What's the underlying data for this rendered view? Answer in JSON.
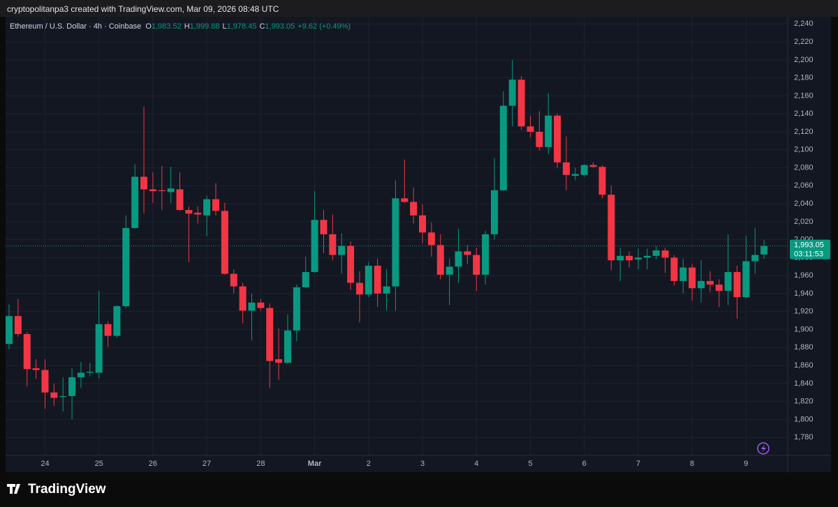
{
  "header": {
    "credit": "cryptopolitanpa3 created with TradingView.com, Mar 09, 2026 08:48 UTC"
  },
  "footer": {
    "brand": "TradingView"
  },
  "chart_data": {
    "type": "candlestick",
    "symbol": "Ethereum / U.S. Dollar · 4h · Coinbase",
    "ohlc_legend": [
      {
        "key": "O",
        "label": "1,983.52"
      },
      {
        "key": "H",
        "label": "1,999.88"
      },
      {
        "key": "L",
        "label": "1,978.45"
      },
      {
        "key": "C",
        "label": "1,993.05"
      }
    ],
    "change_label": "+9.62 (+0.49%)",
    "price_tag": {
      "value": 1993.05,
      "label": "1,993.05",
      "countdown": "03:11:53"
    },
    "up_color": "#089981",
    "down_color": "#f23645",
    "categories": [
      null,
      null,
      null,
      null,
      "24",
      null,
      null,
      null,
      null,
      null,
      "25",
      null,
      null,
      null,
      null,
      null,
      "26",
      null,
      null,
      null,
      null,
      null,
      "27",
      null,
      null,
      null,
      null,
      null,
      "28",
      null,
      null,
      null,
      null,
      null,
      "Mar",
      null,
      null,
      null,
      null,
      null,
      "2",
      null,
      null,
      null,
      null,
      null,
      "3",
      null,
      null,
      null,
      null,
      null,
      "4",
      null,
      null,
      null,
      null,
      null,
      "5",
      null,
      null,
      null,
      null,
      null,
      "6",
      null,
      null,
      null,
      null,
      null,
      "7",
      null,
      null,
      null,
      null,
      null,
      "8",
      null,
      null,
      null,
      null,
      null,
      "9",
      null,
      null
    ],
    "open": [
      1884,
      1915,
      1895,
      1857,
      1855,
      1830,
      1825,
      1826,
      1847,
      1852,
      1852,
      1906,
      1893,
      1926,
      2013,
      2070,
      2056,
      2055,
      2053,
      2056,
      2033,
      2030,
      2027,
      2045,
      2032,
      1962,
      1948,
      1921,
      1930,
      1924,
      1867,
      1863,
      1899,
      1947,
      1964,
      2022,
      2006,
      1983,
      1993,
      1952,
      1939,
      1971,
      1940,
      1948,
      2046,
      2042,
      2027,
      2008,
      1994,
      1961,
      1970,
      1987,
      1983,
      1961,
      2006,
      2055,
      2149,
      2178,
      2126,
      2120,
      2103,
      2138,
      2086,
      2071,
      2072,
      2083,
      2081,
      2050,
      1977,
      1982,
      1978,
      1980,
      1982,
      1988,
      1980,
      1954,
      1969,
      1946,
      1954,
      1950,
      1943,
      1964,
      1936,
      1976,
      1983.52
    ],
    "high": [
      1928,
      1934,
      1897,
      1867,
      1867,
      1840,
      1847,
      1857,
      1864,
      1863,
      1943,
      1909,
      1927,
      2027,
      2084,
      2148,
      2075,
      2082,
      2081,
      2075,
      2037,
      2037,
      2049,
      2063,
      2041,
      1967,
      1952,
      1940,
      1934,
      1929,
      1901,
      1917,
      1950,
      1981,
      2054,
      2033,
      2028,
      2007,
      1998,
      1965,
      1975,
      1979,
      1967,
      2066,
      2089,
      2058,
      2039,
      2019,
      2006,
      1979,
      2012,
      1994,
      1991,
      2010,
      2091,
      2165,
      2200,
      2182,
      2138,
      2143,
      2163,
      2140,
      2115,
      2080,
      2084,
      2086,
      2083,
      2060,
      1991,
      1987,
      1990,
      1990,
      1993,
      1991,
      1983,
      1979,
      1973,
      1977,
      1965,
      1956,
      2006,
      1971,
      2004,
      2013,
      1999.88
    ],
    "low": [
      1878,
      1892,
      1837,
      1845,
      1812,
      1815,
      1809,
      1800,
      1835,
      1848,
      1846,
      1881,
      1891,
      1924,
      2012,
      2029,
      2041,
      2033,
      2041,
      2032,
      1975,
      2018,
      2004,
      2027,
      1961,
      1940,
      1907,
      1888,
      1921,
      1835,
      1844,
      1862,
      1887,
      1946,
      1963,
      1985,
      1977,
      1962,
      1944,
      1908,
      1936,
      1925,
      1921,
      1921,
      2041,
      2018,
      1996,
      1981,
      1956,
      1927,
      1952,
      1973,
      1943,
      1950,
      2000,
      2054,
      2126,
      2122,
      2114,
      2099,
      2095,
      2080,
      2055,
      2066,
      2070,
      2080,
      2046,
      1966,
      1954,
      1969,
      1967,
      1967,
      1978,
      1963,
      1949,
      1940,
      1932,
      1930,
      1942,
      1925,
      1927,
      1912,
      1935,
      1962,
      1978.45
    ],
    "close": [
      1915,
      1895,
      1856,
      1855,
      1830,
      1824,
      1826,
      1847,
      1852,
      1853,
      1906,
      1893,
      1926,
      2013,
      2070,
      2056,
      2054,
      2054,
      2057,
      2033,
      2029,
      2028,
      2045,
      2032,
      1962,
      1948,
      1921,
      1930,
      1924,
      1865,
      1863,
      1899,
      1947,
      1964,
      2022,
      2006,
      1983,
      1993,
      1952,
      1939,
      1971,
      1940,
      1948,
      2046,
      2042,
      2027,
      2008,
      1994,
      1961,
      1970,
      1987,
      1983,
      1961,
      2006,
      2055,
      2149,
      2178,
      2126,
      2120,
      2103,
      2138,
      2086,
      2072,
      2073,
      2083,
      2081,
      2050,
      1977,
      1982,
      1977,
      1980,
      1982,
      1988,
      1980,
      1954,
      1969,
      1946,
      1954,
      1950,
      1943,
      1964,
      1936,
      1976,
      1983,
      1993.05
    ],
    "ylim": [
      1760,
      2248
    ],
    "yticks": [
      {
        "value": 1780,
        "label": "1,780"
      },
      {
        "value": 1800,
        "label": "1,800"
      },
      {
        "value": 1820,
        "label": "1,820"
      },
      {
        "value": 1840,
        "label": "1,840"
      },
      {
        "value": 1860,
        "label": "1,860"
      },
      {
        "value": 1880,
        "label": "1,880"
      },
      {
        "value": 1900,
        "label": "1,900"
      },
      {
        "value": 1920,
        "label": "1,920"
      },
      {
        "value": 1940,
        "label": "1,940"
      },
      {
        "value": 1960,
        "label": "1,960"
      },
      {
        "value": 1980,
        "label": "1,980"
      },
      {
        "value": 2000,
        "label": "2,000"
      },
      {
        "value": 2020,
        "label": "2,020"
      },
      {
        "value": 2040,
        "label": "2,040"
      },
      {
        "value": 2060,
        "label": "2,060"
      },
      {
        "value": 2080,
        "label": "2,080"
      },
      {
        "value": 2100,
        "label": "2,100"
      },
      {
        "value": 2120,
        "label": "2,120"
      },
      {
        "value": 2140,
        "label": "2,140"
      },
      {
        "value": 2160,
        "label": "2,160"
      },
      {
        "value": 2180,
        "label": "2,180"
      },
      {
        "value": 2200,
        "label": "2,200"
      },
      {
        "value": 2220,
        "label": "2,220"
      },
      {
        "value": 2240,
        "label": "2,240"
      }
    ],
    "grid": true
  }
}
